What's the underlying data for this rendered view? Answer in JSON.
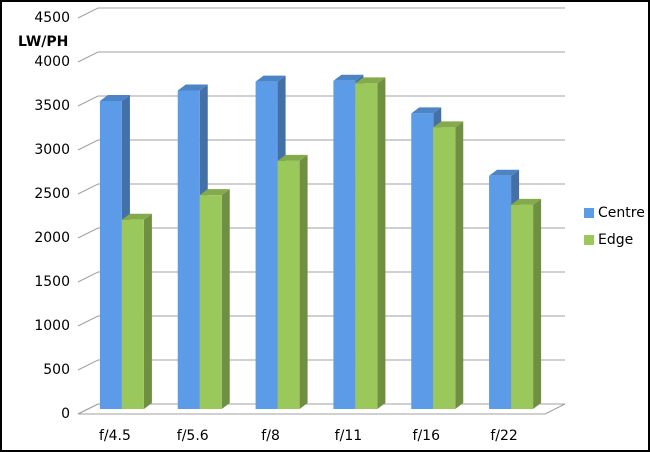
{
  "chart_data": {
    "type": "bar",
    "y_label": "LW/PH",
    "categories": [
      "f/4.5",
      "f/5.6",
      "f/8",
      "f/11",
      "f/16",
      "f/22"
    ],
    "series": [
      {
        "name": "Centre",
        "color": "#5b9be8",
        "values": [
          3500,
          3620,
          3720,
          3730,
          3360,
          2650
        ]
      },
      {
        "name": "Edge",
        "color": "#9bc85a",
        "values": [
          2150,
          2430,
          2820,
          3700,
          3200,
          2320
        ]
      }
    ],
    "ylim": [
      0,
      4500
    ],
    "yticks": [
      0,
      500,
      1000,
      1500,
      2000,
      2500,
      3000,
      3500,
      4000,
      4500
    ],
    "grid": true,
    "legend": "right"
  }
}
